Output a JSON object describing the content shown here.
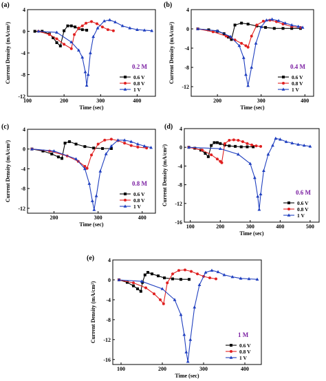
{
  "chart_data": [
    {
      "type": "line",
      "panel_label": "(a)",
      "concentration": "0.2 M",
      "xlabel": "Time (sec)",
      "ylabel": "Current Density (mA/cm²)",
      "xlim": [
        100,
        450
      ],
      "ylim": [
        -12,
        4
      ],
      "xticks": [
        100,
        200,
        300,
        400
      ],
      "yticks": [
        -12,
        -8,
        -4,
        0,
        4
      ],
      "legend_position": "bottom-right",
      "series": [
        {
          "name": "0.6 V",
          "color": "#000000",
          "marker": "square",
          "x": [
            120,
            140,
            160,
            170,
            180,
            190,
            200,
            210,
            220,
            230,
            240,
            250,
            262
          ],
          "y": [
            0,
            0,
            -0.5,
            -1.2,
            -2.1,
            -2.7,
            0.1,
            1.0,
            1.0,
            0.8,
            0.5,
            0.3,
            0.2
          ]
        },
        {
          "name": "0.8 V",
          "color": "#e02020",
          "marker": "circle",
          "x": [
            130,
            160,
            180,
            200,
            220,
            228,
            240,
            250,
            260,
            275,
            290,
            305,
            320,
            335
          ],
          "y": [
            0,
            -0.6,
            -1.4,
            -2.4,
            -3.2,
            -0.6,
            0.6,
            1.0,
            1.5,
            1.8,
            1.4,
            0.8,
            0.3,
            0.1
          ]
        },
        {
          "name": "1 V",
          "color": "#1f3fbf",
          "marker": "triangle",
          "x": [
            130,
            180,
            220,
            240,
            250,
            258,
            262,
            266,
            272,
            280,
            292,
            310,
            325,
            340,
            360,
            380,
            400,
            420,
            440
          ],
          "y": [
            0,
            -0.2,
            -2.0,
            -3.5,
            -4.8,
            -7.5,
            -10.0,
            -8.0,
            -4.0,
            -1.0,
            0.6,
            1.9,
            2.1,
            1.7,
            1.0,
            0.6,
            0.3,
            0.2,
            0.1
          ]
        }
      ]
    },
    {
      "type": "line",
      "panel_label": "(b)",
      "concentration": "0.4 M",
      "xlabel": "Time (sec)",
      "ylabel": "Current Density (mA/cm²)",
      "xlim": [
        140,
        420
      ],
      "ylim": [
        -14,
        4
      ],
      "xticks": [
        200,
        300,
        400
      ],
      "yticks": [
        -12,
        -8,
        -4,
        0,
        4
      ],
      "legend_position": "bottom-right",
      "series": [
        {
          "name": "0.6 V",
          "color": "#000000",
          "marker": "square",
          "x": [
            155,
            180,
            200,
            215,
            225,
            232,
            240,
            255,
            270,
            290,
            310,
            330,
            350,
            370,
            390
          ],
          "y": [
            0,
            -0.2,
            -0.5,
            -1.0,
            -1.7,
            -2.2,
            0.8,
            1.2,
            1.0,
            0.6,
            0.3,
            0.1,
            0.1,
            0.1,
            0.1
          ]
        },
        {
          "name": "0.8 V",
          "color": "#e02020",
          "marker": "circle",
          "x": [
            155,
            190,
            220,
            240,
            255,
            265,
            270,
            278,
            290,
            305,
            320,
            335,
            350,
            370,
            390
          ],
          "y": [
            0,
            -0.6,
            -1.5,
            -2.3,
            -3.0,
            -3.5,
            -3.8,
            -1.5,
            0.8,
            1.6,
            1.8,
            1.5,
            1.0,
            0.5,
            0.3
          ]
        },
        {
          "name": "1 V",
          "color": "#1f3fbf",
          "marker": "triangle",
          "x": [
            155,
            200,
            230,
            250,
            260,
            265,
            270,
            278,
            288,
            300,
            312,
            325,
            340,
            355,
            370,
            385,
            395
          ],
          "y": [
            0,
            -0.4,
            -1.6,
            -3.5,
            -6.0,
            -9.5,
            -11.8,
            -8.0,
            -3.0,
            0.4,
            1.8,
            2.0,
            1.7,
            1.2,
            0.8,
            0.5,
            0.3
          ]
        }
      ]
    },
    {
      "type": "line",
      "panel_label": "(c)",
      "concentration": "0.8 M",
      "xlabel": "Time (sec)",
      "ylabel": "Current Density (mA/cm²)",
      "xlim": [
        140,
        430
      ],
      "ylim": [
        -13,
        4
      ],
      "xticks": [
        200,
        300,
        400
      ],
      "yticks": [
        -12,
        -8,
        -4,
        0,
        4
      ],
      "legend_position": "bottom-right",
      "series": [
        {
          "name": "0.6 V",
          "color": "#000000",
          "marker": "square",
          "x": [
            150,
            175,
            195,
            210,
            218,
            225,
            235,
            250,
            270,
            290,
            310,
            330
          ],
          "y": [
            0,
            -0.4,
            -1.0,
            -1.6,
            -1.9,
            1.2,
            1.5,
            1.0,
            0.5,
            0.2,
            0.1,
            0.1
          ]
        },
        {
          "name": "0.8 V",
          "color": "#e02020",
          "marker": "circle",
          "x": [
            150,
            190,
            230,
            255,
            270,
            275,
            285,
            300,
            315,
            330,
            345,
            360,
            375,
            390,
            410
          ],
          "y": [
            0,
            -0.4,
            -1.4,
            -2.5,
            -3.5,
            -3.9,
            -1.2,
            1.0,
            1.8,
            2.0,
            1.7,
            1.2,
            0.7,
            0.4,
            0.2
          ]
        },
        {
          "name": "1 V",
          "color": "#1f3fbf",
          "marker": "triangle",
          "x": [
            150,
            200,
            250,
            270,
            280,
            287,
            291,
            296,
            305,
            318,
            330,
            345,
            360,
            375,
            390,
            405,
            420
          ],
          "y": [
            0,
            -0.4,
            -2.0,
            -4.0,
            -7.0,
            -10.5,
            -12.3,
            -9.5,
            -4.5,
            -1.0,
            0.6,
            1.8,
            1.8,
            1.5,
            1.0,
            0.6,
            0.3
          ]
        }
      ]
    },
    {
      "type": "line",
      "panel_label": "(d)",
      "concentration": "0.6 M",
      "xlabel": "Time (sec)",
      "ylabel": "Current Density (mA/cm²)",
      "xlim": [
        80,
        530
      ],
      "ylim": [
        -16,
        4
      ],
      "xticks": [
        100,
        200,
        300,
        400,
        500
      ],
      "yticks": [
        -16,
        -12,
        -8,
        -4,
        0,
        4
      ],
      "legend_position": "bottom-right",
      "series": [
        {
          "name": "0.6 V",
          "color": "#000000",
          "marker": "square",
          "x": [
            95,
            115,
            135,
            150,
            160,
            170,
            180,
            190,
            200,
            215,
            230,
            250,
            270,
            290,
            310
          ],
          "y": [
            0,
            -0.2,
            -0.6,
            -1.3,
            -2.0,
            0.4,
            1.0,
            1.0,
            0.8,
            0.5,
            0.3,
            0.2,
            0.1,
            0.1,
            0.1
          ]
        },
        {
          "name": "0.8 V",
          "color": "#e02020",
          "marker": "circle",
          "x": [
            95,
            140,
            170,
            190,
            200,
            205,
            215,
            230,
            245,
            260,
            275,
            290,
            305,
            320,
            335
          ],
          "y": [
            0,
            -0.6,
            -1.6,
            -2.5,
            -3.0,
            -3.3,
            0.8,
            1.5,
            1.6,
            1.5,
            1.2,
            0.8,
            0.5,
            0.3,
            0.2
          ]
        },
        {
          "name": "1 V",
          "color": "#1f3fbf",
          "marker": "triangle",
          "x": [
            95,
            200,
            260,
            300,
            315,
            325,
            330,
            335,
            345,
            360,
            375,
            385,
            400,
            420,
            440,
            460,
            480,
            500
          ],
          "y": [
            0,
            -0.3,
            -1.5,
            -3.5,
            -6.5,
            -10.5,
            -13.3,
            -10.0,
            -5.0,
            -1.5,
            0.4,
            1.9,
            1.7,
            1.2,
            0.9,
            0.6,
            0.4,
            0.2
          ]
        }
      ]
    },
    {
      "type": "line",
      "panel_label": "(e)",
      "concentration": "1 M",
      "xlabel": "Time (sec)",
      "ylabel": "Current Density (mA/cm²)",
      "xlim": [
        80,
        440
      ],
      "ylim": [
        -17,
        4
      ],
      "xticks": [
        100,
        200,
        300,
        400
      ],
      "yticks": [
        -16,
        -12,
        -8,
        -4,
        0,
        4
      ],
      "legend_position": "bottom-right",
      "series": [
        {
          "name": "0.6 V",
          "color": "#000000",
          "marker": "square",
          "x": [
            95,
            115,
            130,
            140,
            148,
            152,
            158,
            165,
            175,
            190,
            205,
            225,
            245,
            265
          ],
          "y": [
            0,
            -0.5,
            -1.2,
            -1.8,
            -2.3,
            -0.5,
            1.0,
            1.5,
            1.2,
            0.8,
            0.4,
            0.2,
            0.1,
            0.1
          ]
        },
        {
          "name": "0.8 V",
          "color": "#e02020",
          "marker": "circle",
          "x": [
            95,
            130,
            160,
            180,
            195,
            203,
            212,
            225,
            240,
            255,
            270,
            285,
            300,
            315,
            330
          ],
          "y": [
            0,
            -0.6,
            -1.6,
            -2.8,
            -4.0,
            -4.8,
            -0.6,
            1.2,
            1.9,
            2.0,
            1.7,
            1.2,
            0.7,
            0.4,
            0.2
          ]
        },
        {
          "name": "1 V",
          "color": "#1f3fbf",
          "marker": "triangle",
          "x": [
            95,
            150,
            200,
            230,
            245,
            253,
            258,
            262,
            268,
            278,
            290,
            305,
            320,
            335,
            350,
            370,
            390,
            410,
            430
          ],
          "y": [
            0,
            -0.3,
            -1.8,
            -4.0,
            -7.0,
            -11.0,
            -14.5,
            -16.4,
            -12.0,
            -5.5,
            -1.0,
            1.5,
            1.9,
            1.6,
            1.0,
            0.6,
            0.3,
            0.2,
            0.1
          ]
        }
      ]
    }
  ]
}
